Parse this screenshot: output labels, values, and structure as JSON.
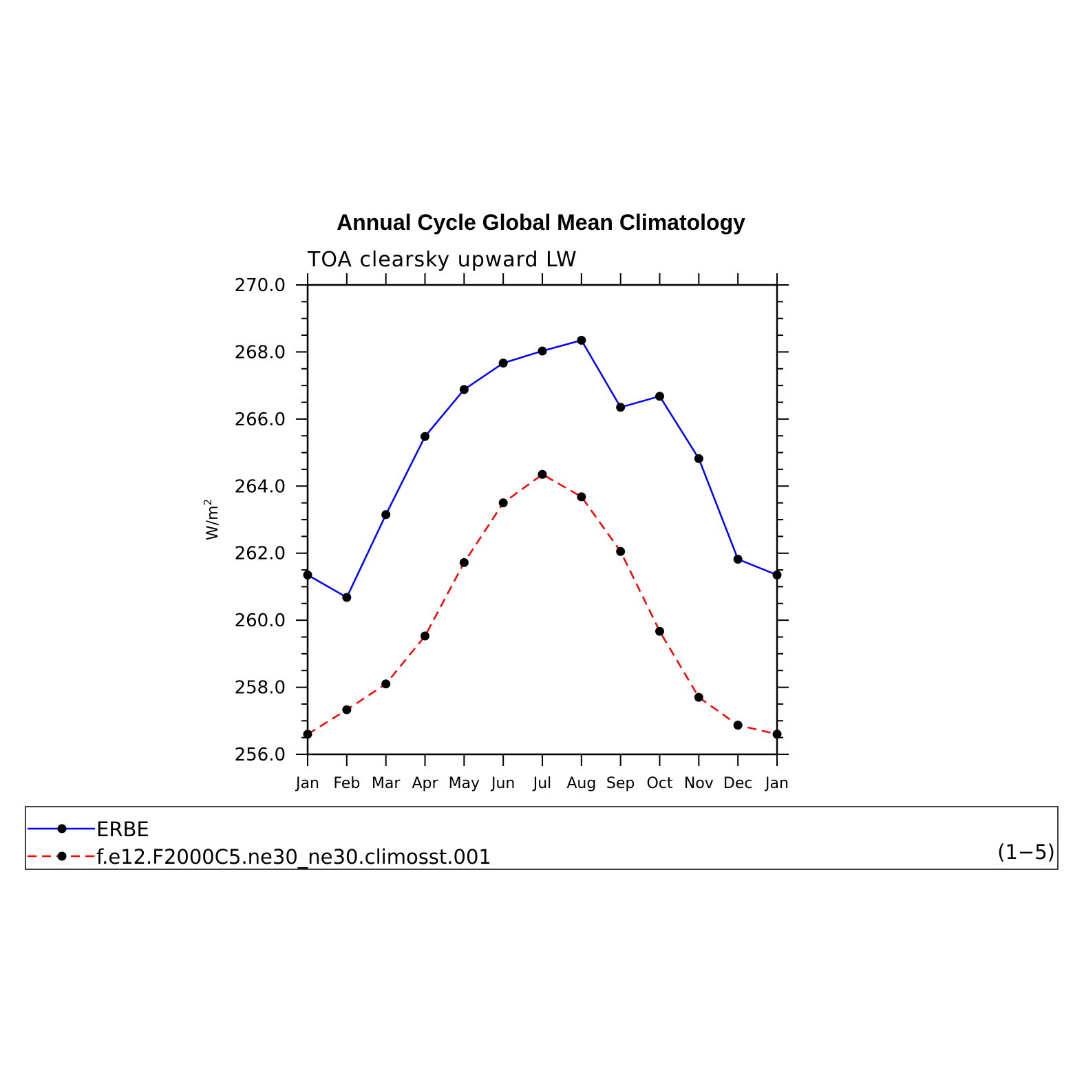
{
  "chart_data": {
    "type": "line",
    "title": "Annual Cycle Global Mean Climatology",
    "subtitle": "TOA clearsky upward LW",
    "ylabel_base": "W/m",
    "ylabel_sup": "2",
    "categories": [
      "Jan",
      "Feb",
      "Mar",
      "Apr",
      "May",
      "Jun",
      "Jul",
      "Aug",
      "Sep",
      "Oct",
      "Nov",
      "Dec",
      "Jan"
    ],
    "ylim": [
      256.0,
      270.0
    ],
    "yticks": [
      "256.0",
      "258.0",
      "260.0",
      "262.0",
      "264.0",
      "266.0",
      "268.0",
      "270.0"
    ],
    "ytick_values": [
      256,
      258,
      260,
      262,
      264,
      266,
      268,
      270
    ],
    "series": [
      {
        "name": "ERBE",
        "color": "#0000ff",
        "style": "solid",
        "values": [
          261.35,
          260.68,
          263.15,
          265.48,
          266.88,
          267.67,
          268.03,
          268.35,
          266.35,
          266.68,
          264.82,
          261.82,
          261.35
        ]
      },
      {
        "name": "f.e12.F2000C5.ne30_ne30.climosst.001",
        "color": "#ff0000",
        "style": "dashed",
        "values": [
          256.6,
          257.33,
          258.1,
          259.53,
          261.72,
          263.5,
          264.35,
          263.68,
          262.05,
          259.67,
          257.7,
          256.87,
          256.6
        ]
      }
    ],
    "legend_placement": "bottom",
    "legend_note": "(1−5)",
    "marker_color": "#000000"
  }
}
